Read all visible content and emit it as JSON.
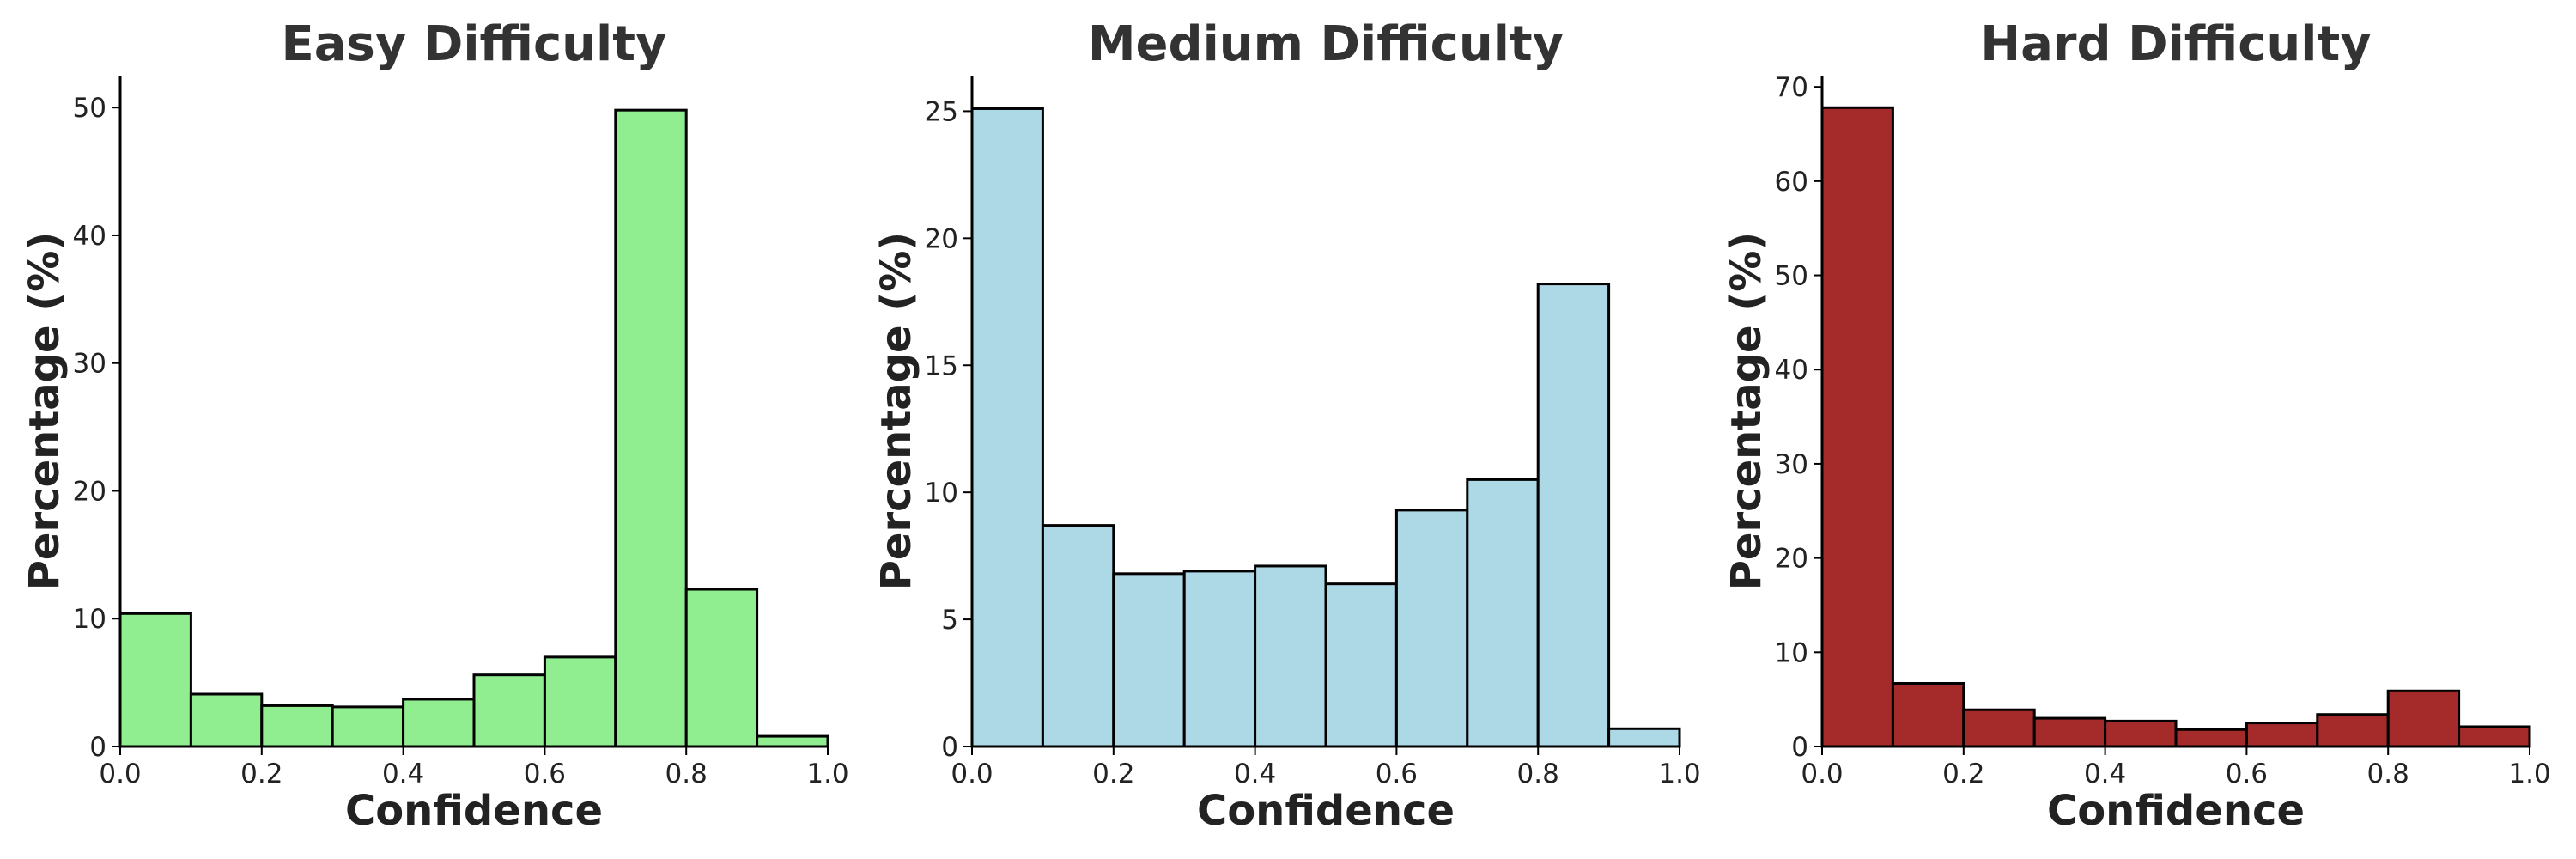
{
  "chart_data": [
    {
      "type": "bar",
      "title": "Easy Difficulty",
      "xlabel": "Confidence",
      "ylabel": "Percentage (%)",
      "color": "#90ee90",
      "bin_edges": [
        0.0,
        0.1,
        0.2,
        0.3,
        0.4,
        0.5,
        0.6,
        0.7,
        0.8,
        0.9,
        1.0
      ],
      "values": [
        10.4,
        4.1,
        3.2,
        3.1,
        3.7,
        5.6,
        7.0,
        49.8,
        12.3,
        0.8
      ],
      "xlim": [
        0.0,
        1.0
      ],
      "ylim": [
        0,
        52.5
      ],
      "xticks": [
        "0.0",
        "0.2",
        "0.4",
        "0.6",
        "0.8",
        "1.0"
      ],
      "yticks": [
        "0",
        "10",
        "20",
        "30",
        "40",
        "50"
      ],
      "grid": false
    },
    {
      "type": "bar",
      "title": "Medium Difficulty",
      "xlabel": "Confidence",
      "ylabel": "Percentage (%)",
      "color": "#add8e6",
      "bin_edges": [
        0.0,
        0.1,
        0.2,
        0.3,
        0.4,
        0.5,
        0.6,
        0.7,
        0.8,
        0.9,
        1.0
      ],
      "values": [
        25.1,
        8.7,
        6.8,
        6.9,
        7.1,
        6.4,
        9.3,
        10.5,
        18.2,
        0.7
      ],
      "xlim": [
        0.0,
        1.0
      ],
      "ylim": [
        0,
        26.4
      ],
      "xticks": [
        "0.0",
        "0.2",
        "0.4",
        "0.6",
        "0.8",
        "1.0"
      ],
      "yticks": [
        "0",
        "5",
        "10",
        "15",
        "20",
        "25"
      ],
      "grid": false
    },
    {
      "type": "bar",
      "title": "Hard Difficulty",
      "xlabel": "Confidence",
      "ylabel": "Percentage (%)",
      "color": "#a52a2a",
      "bin_edges": [
        0.0,
        0.1,
        0.2,
        0.3,
        0.4,
        0.5,
        0.6,
        0.7,
        0.8,
        0.9,
        1.0
      ],
      "values": [
        67.8,
        6.7,
        3.9,
        3.0,
        2.7,
        1.8,
        2.5,
        3.4,
        5.9,
        2.1
      ],
      "xlim": [
        0.0,
        1.0
      ],
      "ylim": [
        0,
        71.2
      ],
      "xticks": [
        "0.0",
        "0.2",
        "0.4",
        "0.6",
        "0.8",
        "1.0"
      ],
      "yticks": [
        "0",
        "10",
        "20",
        "30",
        "40",
        "50",
        "60",
        "70"
      ],
      "grid": false
    }
  ]
}
